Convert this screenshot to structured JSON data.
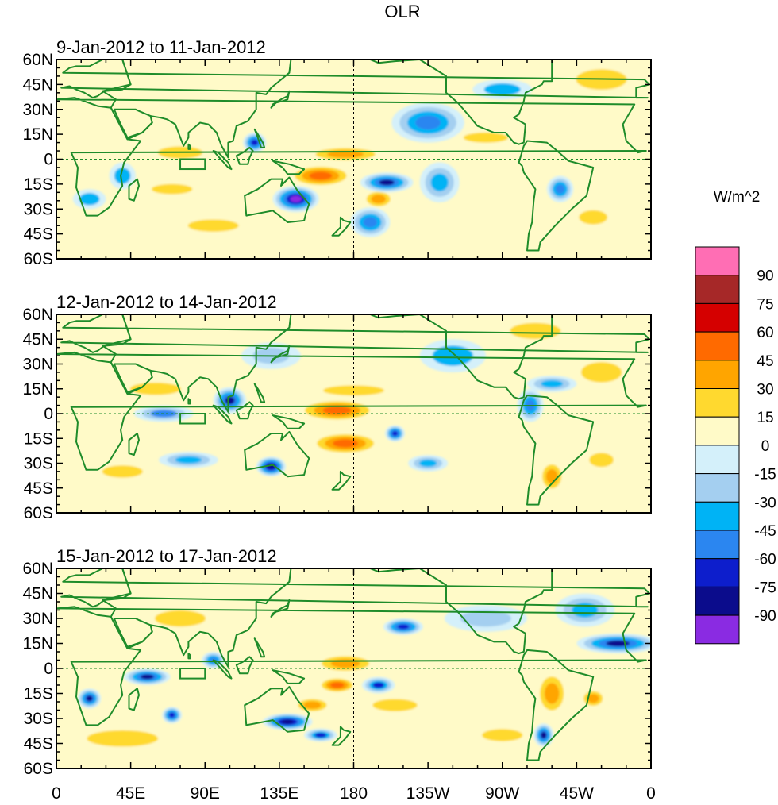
{
  "title": "OLR",
  "units_label": "W/m^2",
  "chart_data": {
    "type": "contour-map",
    "variable": "OLR anomaly",
    "lon_range": [
      0,
      360
    ],
    "lat_range": [
      -60,
      60
    ],
    "x_tick_labels": [
      "0",
      "45E",
      "90E",
      "135E",
      "180",
      "135W",
      "90W",
      "45W",
      "0"
    ],
    "y_tick_labels": [
      "60N",
      "45N",
      "30N",
      "15N",
      "0",
      "15S",
      "30S",
      "45S",
      "60S"
    ],
    "colorbar": {
      "labels": [
        "90",
        "75",
        "60",
        "45",
        "30",
        "15",
        "0",
        "-15",
        "-30",
        "-45",
        "-60",
        "-75",
        "-90"
      ],
      "colors": [
        "#ff6eb4",
        "#a62828",
        "#d50000",
        "#ff6a00",
        "#ffa500",
        "#ffd92f",
        "#fffac8",
        "#d4f0fa",
        "#a4cff0",
        "#00b3f5",
        "#2b86f0",
        "#0d1ecc",
        "#0b0c8c",
        "#8a2be2"
      ]
    },
    "panels": [
      {
        "subtitle": "9-Jan-2012 to 11-Jan-2012",
        "blobs": [
          {
            "lon": 145,
            "lat": -24,
            "rx": 14,
            "ry": 8,
            "v": -90
          },
          {
            "lon": 120,
            "lat": 10,
            "rx": 7,
            "ry": 6,
            "v": -70
          },
          {
            "lon": 200,
            "lat": -14,
            "rx": 16,
            "ry": 6,
            "v": -75
          },
          {
            "lon": 225,
            "lat": 22,
            "rx": 22,
            "ry": 12,
            "v": -50
          },
          {
            "lon": 190,
            "lat": -38,
            "rx": 12,
            "ry": 9,
            "v": -50
          },
          {
            "lon": 232,
            "lat": -14,
            "rx": 12,
            "ry": 12,
            "v": -40
          },
          {
            "lon": 305,
            "lat": -18,
            "rx": 8,
            "ry": 8,
            "v": -55
          },
          {
            "lon": 20,
            "lat": -24,
            "rx": 10,
            "ry": 6,
            "v": -30
          },
          {
            "lon": 40,
            "lat": -10,
            "rx": 8,
            "ry": 8,
            "v": -30
          },
          {
            "lon": 270,
            "lat": 42,
            "rx": 18,
            "ry": 6,
            "v": -30
          },
          {
            "lon": 160,
            "lat": -10,
            "rx": 20,
            "ry": 7,
            "v": 55
          },
          {
            "lon": 175,
            "lat": 3,
            "rx": 25,
            "ry": 5,
            "v": 40
          },
          {
            "lon": 195,
            "lat": -24,
            "rx": 10,
            "ry": 6,
            "v": 45
          },
          {
            "lon": 260,
            "lat": 13,
            "rx": 22,
            "ry": 5,
            "v": 30
          },
          {
            "lon": 325,
            "lat": -35,
            "rx": 14,
            "ry": 7,
            "v": 30
          },
          {
            "lon": 75,
            "lat": 4,
            "rx": 22,
            "ry": 6,
            "v": 25
          },
          {
            "lon": 70,
            "lat": -18,
            "rx": 20,
            "ry": 5,
            "v": 25
          },
          {
            "lon": 95,
            "lat": -40,
            "rx": 25,
            "ry": 6,
            "v": 20
          },
          {
            "lon": 330,
            "lat": 48,
            "rx": 25,
            "ry": 10,
            "v": 20
          }
        ]
      },
      {
        "subtitle": "12-Jan-2012 to 14-Jan-2012",
        "blobs": [
          {
            "lon": 105,
            "lat": 8,
            "rx": 10,
            "ry": 8,
            "v": -75
          },
          {
            "lon": 130,
            "lat": -32,
            "rx": 9,
            "ry": 6,
            "v": -85
          },
          {
            "lon": 65,
            "lat": 0,
            "rx": 18,
            "ry": 5,
            "v": -45
          },
          {
            "lon": 80,
            "lat": -28,
            "rx": 18,
            "ry": 5,
            "v": -40
          },
          {
            "lon": 205,
            "lat": -12,
            "rx": 6,
            "ry": 5,
            "v": -70
          },
          {
            "lon": 287,
            "lat": 5,
            "rx": 8,
            "ry": 10,
            "v": -55
          },
          {
            "lon": 300,
            "lat": 18,
            "rx": 15,
            "ry": 5,
            "v": -35
          },
          {
            "lon": 240,
            "lat": 35,
            "rx": 20,
            "ry": 10,
            "v": -30
          },
          {
            "lon": 130,
            "lat": 35,
            "rx": 18,
            "ry": 8,
            "v": -25
          },
          {
            "lon": 225,
            "lat": -30,
            "rx": 12,
            "ry": 5,
            "v": -35
          },
          {
            "lon": 170,
            "lat": 2,
            "rx": 25,
            "ry": 7,
            "v": 50
          },
          {
            "lon": 175,
            "lat": -18,
            "rx": 22,
            "ry": 7,
            "v": 50
          },
          {
            "lon": 180,
            "lat": 14,
            "rx": 30,
            "ry": 5,
            "v": 30
          },
          {
            "lon": 300,
            "lat": -38,
            "rx": 8,
            "ry": 10,
            "v": 45
          },
          {
            "lon": 330,
            "lat": -28,
            "rx": 12,
            "ry": 7,
            "v": 30
          },
          {
            "lon": 60,
            "lat": 15,
            "rx": 25,
            "ry": 6,
            "v": 20
          },
          {
            "lon": 330,
            "lat": 25,
            "rx": 20,
            "ry": 10,
            "v": 25
          },
          {
            "lon": 290,
            "lat": 50,
            "rx": 25,
            "ry": 8,
            "v": 20
          },
          {
            "lon": 40,
            "lat": -35,
            "rx": 20,
            "ry": 6,
            "v": 20
          }
        ]
      },
      {
        "subtitle": "15-Jan-2012 to 17-Jan-2012",
        "blobs": [
          {
            "lon": 55,
            "lat": -5,
            "rx": 14,
            "ry": 5,
            "v": -75
          },
          {
            "lon": 140,
            "lat": -32,
            "rx": 15,
            "ry": 5,
            "v": -85
          },
          {
            "lon": 160,
            "lat": -40,
            "rx": 10,
            "ry": 4,
            "v": -60
          },
          {
            "lon": 210,
            "lat": 25,
            "rx": 12,
            "ry": 5,
            "v": -70
          },
          {
            "lon": 340,
            "lat": 15,
            "rx": 25,
            "ry": 6,
            "v": -75
          },
          {
            "lon": 295,
            "lat": -40,
            "rx": 6,
            "ry": 7,
            "v": -75
          },
          {
            "lon": 20,
            "lat": -18,
            "rx": 7,
            "ry": 6,
            "v": -75
          },
          {
            "lon": 70,
            "lat": -28,
            "rx": 6,
            "ry": 5,
            "v": -70
          },
          {
            "lon": 95,
            "lat": 5,
            "rx": 7,
            "ry": 5,
            "v": -55
          },
          {
            "lon": 195,
            "lat": -10,
            "rx": 10,
            "ry": 5,
            "v": -60
          },
          {
            "lon": 320,
            "lat": 35,
            "rx": 18,
            "ry": 10,
            "v": -35
          },
          {
            "lon": 260,
            "lat": 30,
            "rx": 25,
            "ry": 8,
            "v": -25
          },
          {
            "lon": 175,
            "lat": 3,
            "rx": 20,
            "ry": 6,
            "v": 45
          },
          {
            "lon": 170,
            "lat": -10,
            "rx": 12,
            "ry": 5,
            "v": 60
          },
          {
            "lon": 300,
            "lat": -15,
            "rx": 10,
            "ry": 14,
            "v": 45
          },
          {
            "lon": 325,
            "lat": -18,
            "rx": 8,
            "ry": 6,
            "v": 45
          },
          {
            "lon": 40,
            "lat": -42,
            "rx": 35,
            "ry": 8,
            "v": 25
          },
          {
            "lon": 205,
            "lat": -22,
            "rx": 22,
            "ry": 6,
            "v": 30
          },
          {
            "lon": 155,
            "lat": -22,
            "rx": 12,
            "ry": 5,
            "v": 35
          },
          {
            "lon": 75,
            "lat": 30,
            "rx": 25,
            "ry": 8,
            "v": 20
          },
          {
            "lon": 270,
            "lat": -40,
            "rx": 20,
            "ry": 6,
            "v": 20
          }
        ]
      }
    ]
  }
}
